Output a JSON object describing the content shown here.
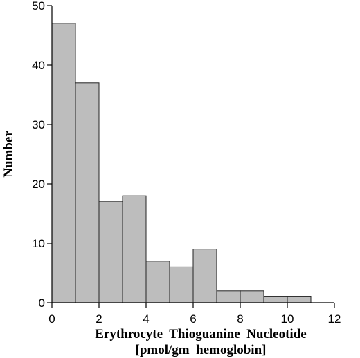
{
  "chart_data": {
    "type": "bar",
    "subtype": "histogram",
    "xlabel": "Erythrocyte  Thioguanine  Nucleotide",
    "xlabel_units": "[pmol/gm  hemoglobin]",
    "ylabel": "Number",
    "xlim": [
      0,
      12
    ],
    "ylim": [
      0,
      50
    ],
    "x_ticks": [
      "0",
      "2",
      "4",
      "6",
      "8",
      "10",
      "12"
    ],
    "y_ticks": [
      "0",
      "10",
      "20",
      "30",
      "40",
      "50"
    ],
    "bin_width": 1,
    "bins": [
      {
        "start": 0,
        "end": 1,
        "value": 47
      },
      {
        "start": 1,
        "end": 2,
        "value": 37
      },
      {
        "start": 2,
        "end": 3,
        "value": 17
      },
      {
        "start": 3,
        "end": 4,
        "value": 18
      },
      {
        "start": 4,
        "end": 5,
        "value": 7
      },
      {
        "start": 5,
        "end": 6,
        "value": 6
      },
      {
        "start": 6,
        "end": 7,
        "value": 9
      },
      {
        "start": 7,
        "end": 8,
        "value": 2
      },
      {
        "start": 8,
        "end": 9,
        "value": 2
      },
      {
        "start": 9,
        "end": 10,
        "value": 1
      },
      {
        "start": 10,
        "end": 11,
        "value": 1
      }
    ],
    "bar_color": "#bdbdbd",
    "grid": false,
    "legend": "none"
  }
}
